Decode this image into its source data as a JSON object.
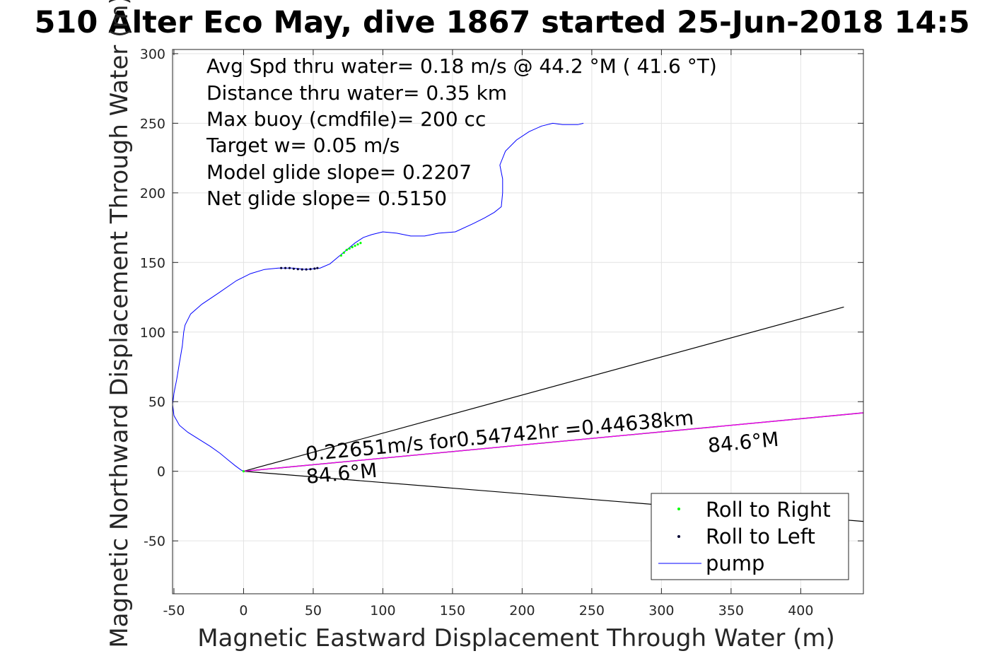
{
  "chart_data": {
    "type": "line",
    "title": "510 Alter Eco May, dive 1867 started 25-Jun-2018 14:5",
    "xlabel": "Magnetic Eastward Displacement Through Water (m)",
    "ylabel": "Magnetic Northward Displacement Through Water (m)",
    "xlim": [
      -51,
      445
    ],
    "ylim": [
      -88,
      303
    ],
    "xticks": [
      -50,
      0,
      50,
      100,
      150,
      200,
      250,
      300,
      350,
      400
    ],
    "yticks": [
      -50,
      0,
      50,
      100,
      150,
      200,
      250,
      300
    ],
    "grid": true,
    "info_lines": [
      "Avg Spd thru water=  0.18 m/s @  44.2 °M ( 41.6 °T)",
      "Distance thru water=  0.35 km",
      "Max buoy (cmdfile)= 200 cc",
      "Target w= 0.05 m/s",
      "Model glide slope= 0.2207",
      "Net glide slope= 0.5150"
    ],
    "annotations": {
      "speed_text": "0.22651m/s for0.54742hr =0.44638km",
      "heading_near": "84.6°M",
      "heading_far": "84.6°M"
    },
    "legend": {
      "position": "bottom-right",
      "entries": [
        "Roll to Right",
        "Roll to Left",
        "pump"
      ]
    },
    "colors": {
      "track": "#0000ff",
      "roll_right": "#00ff00",
      "roll_left": "#000033",
      "heading_line": "#ff00ff",
      "cone": "#000000"
    },
    "series": [
      {
        "name": "pump",
        "x": [
          0,
          -2,
          -6,
          -11,
          -17,
          -24,
          -32,
          -40,
          -46,
          -50,
          -51,
          -50,
          -48,
          -46,
          -44,
          -43,
          -42,
          -38,
          -30,
          -18,
          -5,
          5,
          15,
          25,
          35,
          45,
          55,
          62,
          68,
          74,
          80,
          86,
          92,
          100,
          110,
          120,
          130,
          140,
          152,
          165,
          173,
          180,
          185,
          186,
          186,
          184,
          188,
          196,
          205,
          214,
          222,
          229,
          235,
          240,
          244
        ],
        "y": [
          0,
          1,
          4,
          8,
          13,
          18,
          23,
          28,
          33,
          40,
          48,
          56,
          66,
          78,
          90,
          100,
          105,
          113,
          120,
          128,
          137,
          142,
          145,
          146,
          146,
          145,
          146,
          149,
          154,
          159,
          164,
          168,
          170,
          172,
          171,
          169,
          169,
          171,
          172,
          178,
          182,
          186,
          190,
          200,
          210,
          220,
          230,
          238,
          244,
          248,
          250,
          249,
          249,
          249,
          250
        ]
      },
      {
        "name": "Roll to Right",
        "x": [
          70,
          72,
          74,
          76,
          78,
          80,
          82,
          84
        ],
        "y": [
          155,
          157,
          159,
          160,
          161,
          162,
          163,
          164
        ]
      },
      {
        "name": "Roll to Left",
        "x": [
          27,
          30,
          33,
          36,
          39,
          42,
          45,
          48,
          51,
          53
        ],
        "y": [
          146,
          146,
          146,
          145.5,
          145.2,
          145,
          145,
          145.2,
          145.6,
          146
        ]
      }
    ],
    "heading_line": {
      "x": [
        0,
        445
      ],
      "y": [
        0,
        42
      ]
    },
    "cone_upper": {
      "x": [
        0,
        431
      ],
      "y": [
        0,
        118
      ]
    },
    "cone_lower": {
      "x": [
        0,
        445
      ],
      "y": [
        0,
        -36
      ]
    }
  }
}
